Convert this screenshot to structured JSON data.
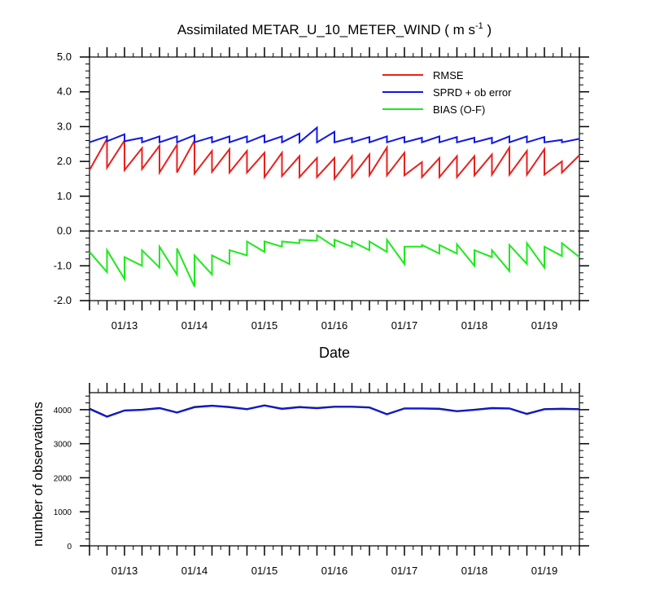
{
  "chart_data": [
    {
      "type": "line",
      "title": "Assimilated METAR_U_10_METER_WIND ( m s",
      "title_sup": "-1",
      "title_end": " )",
      "xlabel": "Date",
      "ylabel": "",
      "ylim": [
        -2.0,
        5.0
      ],
      "yticks": [
        "-2.0",
        "-1.0",
        "0.0",
        "1.0",
        "2.0",
        "3.0",
        "4.0",
        "5.0"
      ],
      "xlim": [
        12.5,
        19.5
      ],
      "xticks": [
        {
          "label": "01/13",
          "x": 13.0
        },
        {
          "label": "01/14",
          "x": 14.0
        },
        {
          "label": "01/15",
          "x": 15.0
        },
        {
          "label": "01/16",
          "x": 16.0
        },
        {
          "label": "01/17",
          "x": 17.0
        },
        {
          "label": "01/18",
          "x": 18.0
        },
        {
          "label": "01/19",
          "x": 19.0
        }
      ],
      "zero_line": {
        "y": 0.0,
        "style": "dashed"
      },
      "legend": {
        "placement": "top-right"
      },
      "series": [
        {
          "name": "RMSE",
          "color": "#e8201d",
          "points": [
            [
              12.5,
              1.75
            ],
            [
              12.75,
              2.65
            ],
            [
              12.75,
              1.82
            ],
            [
              13.0,
              2.6
            ],
            [
              13.0,
              1.75
            ],
            [
              13.25,
              2.38
            ],
            [
              13.25,
              1.78
            ],
            [
              13.5,
              2.45
            ],
            [
              13.5,
              1.68
            ],
            [
              13.75,
              2.48
            ],
            [
              13.75,
              1.68
            ],
            [
              14.0,
              2.6
            ],
            [
              14.0,
              1.65
            ],
            [
              14.25,
              2.3
            ],
            [
              14.25,
              1.7
            ],
            [
              14.5,
              2.35
            ],
            [
              14.5,
              1.68
            ],
            [
              14.75,
              2.3
            ],
            [
              14.75,
              1.68
            ],
            [
              15.0,
              2.25
            ],
            [
              15.0,
              1.55
            ],
            [
              15.25,
              2.25
            ],
            [
              15.25,
              1.58
            ],
            [
              15.5,
              2.15
            ],
            [
              15.5,
              1.55
            ],
            [
              15.75,
              2.1
            ],
            [
              15.75,
              1.55
            ],
            [
              16.0,
              2.1
            ],
            [
              16.0,
              1.5
            ],
            [
              16.25,
              2.15
            ],
            [
              16.25,
              1.55
            ],
            [
              16.5,
              2.2
            ],
            [
              16.5,
              1.6
            ],
            [
              16.75,
              2.4
            ],
            [
              16.75,
              1.6
            ],
            [
              17.0,
              2.25
            ],
            [
              17.0,
              1.6
            ],
            [
              17.25,
              1.98
            ],
            [
              17.25,
              1.55
            ],
            [
              17.5,
              2.1
            ],
            [
              17.5,
              1.55
            ],
            [
              17.75,
              2.15
            ],
            [
              17.75,
              1.55
            ],
            [
              18.0,
              2.15
            ],
            [
              18.0,
              1.6
            ],
            [
              18.25,
              2.2
            ],
            [
              18.25,
              1.62
            ],
            [
              18.5,
              2.4
            ],
            [
              18.5,
              1.62
            ],
            [
              18.75,
              2.3
            ],
            [
              18.75,
              1.62
            ],
            [
              19.0,
              2.35
            ],
            [
              19.0,
              1.62
            ],
            [
              19.25,
              2.0
            ],
            [
              19.25,
              1.68
            ],
            [
              19.5,
              2.18
            ]
          ]
        },
        {
          "name": "SPRD + ob error",
          "color": "#1019e6",
          "points": [
            [
              12.5,
              2.55
            ],
            [
              12.75,
              2.72
            ],
            [
              12.75,
              2.58
            ],
            [
              13.0,
              2.78
            ],
            [
              13.0,
              2.58
            ],
            [
              13.25,
              2.68
            ],
            [
              13.25,
              2.55
            ],
            [
              13.5,
              2.72
            ],
            [
              13.5,
              2.55
            ],
            [
              13.75,
              2.72
            ],
            [
              13.75,
              2.55
            ],
            [
              14.0,
              2.75
            ],
            [
              14.0,
              2.55
            ],
            [
              14.25,
              2.7
            ],
            [
              14.25,
              2.55
            ],
            [
              14.5,
              2.72
            ],
            [
              14.5,
              2.55
            ],
            [
              14.75,
              2.72
            ],
            [
              14.75,
              2.55
            ],
            [
              15.0,
              2.75
            ],
            [
              15.0,
              2.55
            ],
            [
              15.25,
              2.72
            ],
            [
              15.25,
              2.55
            ],
            [
              15.5,
              2.8
            ],
            [
              15.5,
              2.55
            ],
            [
              15.75,
              2.97
            ],
            [
              15.75,
              2.55
            ],
            [
              16.0,
              2.85
            ],
            [
              16.0,
              2.55
            ],
            [
              16.25,
              2.68
            ],
            [
              16.25,
              2.55
            ],
            [
              16.5,
              2.7
            ],
            [
              16.5,
              2.55
            ],
            [
              16.75,
              2.72
            ],
            [
              16.75,
              2.55
            ],
            [
              17.0,
              2.7
            ],
            [
              17.0,
              2.55
            ],
            [
              17.25,
              2.68
            ],
            [
              17.25,
              2.55
            ],
            [
              17.5,
              2.72
            ],
            [
              17.5,
              2.55
            ],
            [
              17.75,
              2.7
            ],
            [
              17.75,
              2.55
            ],
            [
              18.0,
              2.68
            ],
            [
              18.0,
              2.55
            ],
            [
              18.25,
              2.68
            ],
            [
              18.25,
              2.52
            ],
            [
              18.5,
              2.72
            ],
            [
              18.5,
              2.55
            ],
            [
              18.75,
              2.72
            ],
            [
              18.75,
              2.55
            ],
            [
              19.0,
              2.7
            ],
            [
              19.0,
              2.55
            ],
            [
              19.25,
              2.62
            ],
            [
              19.25,
              2.55
            ],
            [
              19.5,
              2.65
            ]
          ]
        },
        {
          "name": "BIAS (O-F)",
          "color": "#20e81f",
          "points": [
            [
              12.5,
              -0.6
            ],
            [
              12.75,
              -1.18
            ],
            [
              12.75,
              -0.55
            ],
            [
              13.0,
              -1.38
            ],
            [
              13.0,
              -0.75
            ],
            [
              13.25,
              -1.0
            ],
            [
              13.25,
              -0.55
            ],
            [
              13.5,
              -1.05
            ],
            [
              13.5,
              -0.45
            ],
            [
              13.75,
              -1.25
            ],
            [
              13.75,
              -0.5
            ],
            [
              14.0,
              -1.6
            ],
            [
              14.0,
              -0.7
            ],
            [
              14.25,
              -1.25
            ],
            [
              14.25,
              -0.7
            ],
            [
              14.5,
              -0.95
            ],
            [
              14.5,
              -0.55
            ],
            [
              14.75,
              -0.7
            ],
            [
              14.75,
              -0.3
            ],
            [
              15.0,
              -0.6
            ],
            [
              15.0,
              -0.3
            ],
            [
              15.25,
              -0.45
            ],
            [
              15.25,
              -0.3
            ],
            [
              15.5,
              -0.35
            ],
            [
              15.5,
              -0.25
            ],
            [
              15.75,
              -0.28
            ],
            [
              15.75,
              -0.12
            ],
            [
              16.0,
              -0.45
            ],
            [
              16.0,
              -0.25
            ],
            [
              16.25,
              -0.45
            ],
            [
              16.25,
              -0.3
            ],
            [
              16.5,
              -0.55
            ],
            [
              16.5,
              -0.3
            ],
            [
              16.75,
              -0.6
            ],
            [
              16.75,
              -0.25
            ],
            [
              17.0,
              -0.95
            ],
            [
              17.0,
              -0.45
            ],
            [
              17.25,
              -0.45
            ],
            [
              17.25,
              -0.4
            ],
            [
              17.5,
              -0.65
            ],
            [
              17.5,
              -0.4
            ],
            [
              17.75,
              -0.65
            ],
            [
              17.75,
              -0.38
            ],
            [
              18.0,
              -1.0
            ],
            [
              18.0,
              -0.55
            ],
            [
              18.25,
              -0.75
            ],
            [
              18.25,
              -0.55
            ],
            [
              18.5,
              -1.15
            ],
            [
              18.5,
              -0.4
            ],
            [
              18.75,
              -0.95
            ],
            [
              18.75,
              -0.35
            ],
            [
              19.0,
              -1.05
            ],
            [
              19.0,
              -0.45
            ],
            [
              19.25,
              -0.72
            ],
            [
              19.25,
              -0.35
            ],
            [
              19.5,
              -0.75
            ]
          ]
        }
      ]
    },
    {
      "type": "line",
      "title": "",
      "xlabel": "",
      "ylabel": "number of observations",
      "ylim": [
        0,
        4500
      ],
      "yticks": [
        "0",
        "1000",
        "2000",
        "3000",
        "4000"
      ],
      "xlim": [
        12.5,
        19.5
      ],
      "xticks": [
        {
          "label": "01/13",
          "x": 13.0
        },
        {
          "label": "01/14",
          "x": 14.0
        },
        {
          "label": "01/15",
          "x": 15.0
        },
        {
          "label": "01/16",
          "x": 16.0
        },
        {
          "label": "01/17",
          "x": 17.0
        },
        {
          "label": "01/18",
          "x": 18.0
        },
        {
          "label": "01/19",
          "x": 19.0
        }
      ],
      "series": [
        {
          "color": "#000000",
          "points": [
            [
              12.5,
              4030
            ],
            [
              12.75,
              3800
            ],
            [
              13.0,
              3980
            ],
            [
              13.25,
              4000
            ],
            [
              13.5,
              4050
            ],
            [
              13.75,
              3920
            ],
            [
              14.0,
              4080
            ],
            [
              14.25,
              4120
            ],
            [
              14.5,
              4080
            ],
            [
              14.75,
              4020
            ],
            [
              15.0,
              4130
            ],
            [
              15.25,
              4030
            ],
            [
              15.5,
              4080
            ],
            [
              15.75,
              4050
            ],
            [
              16.0,
              4090
            ],
            [
              16.25,
              4090
            ],
            [
              16.5,
              4070
            ],
            [
              16.75,
              3870
            ],
            [
              17.0,
              4040
            ],
            [
              17.25,
              4040
            ],
            [
              17.5,
              4030
            ],
            [
              17.75,
              3960
            ],
            [
              18.0,
              4000
            ],
            [
              18.25,
              4050
            ],
            [
              18.5,
              4040
            ],
            [
              18.75,
              3880
            ],
            [
              19.0,
              4020
            ],
            [
              19.25,
              4030
            ],
            [
              19.5,
              4020
            ]
          ]
        },
        {
          "color": "#1019e6",
          "points": [
            [
              12.5,
              4020
            ],
            [
              12.75,
              3790
            ],
            [
              13.0,
              3970
            ],
            [
              13.25,
              3990
            ],
            [
              13.5,
              4040
            ],
            [
              13.75,
              3910
            ],
            [
              14.0,
              4070
            ],
            [
              14.25,
              4110
            ],
            [
              14.5,
              4070
            ],
            [
              14.75,
              4010
            ],
            [
              15.0,
              4120
            ],
            [
              15.25,
              4020
            ],
            [
              15.5,
              4070
            ],
            [
              15.75,
              4040
            ],
            [
              16.0,
              4080
            ],
            [
              16.25,
              4080
            ],
            [
              16.5,
              4060
            ],
            [
              16.75,
              3860
            ],
            [
              17.0,
              4030
            ],
            [
              17.25,
              4030
            ],
            [
              17.5,
              4020
            ],
            [
              17.75,
              3950
            ],
            [
              18.0,
              3990
            ],
            [
              18.25,
              4040
            ],
            [
              18.5,
              4030
            ],
            [
              18.75,
              3870
            ],
            [
              19.0,
              4010
            ],
            [
              19.25,
              4020
            ],
            [
              19.5,
              4010
            ]
          ]
        }
      ]
    }
  ]
}
